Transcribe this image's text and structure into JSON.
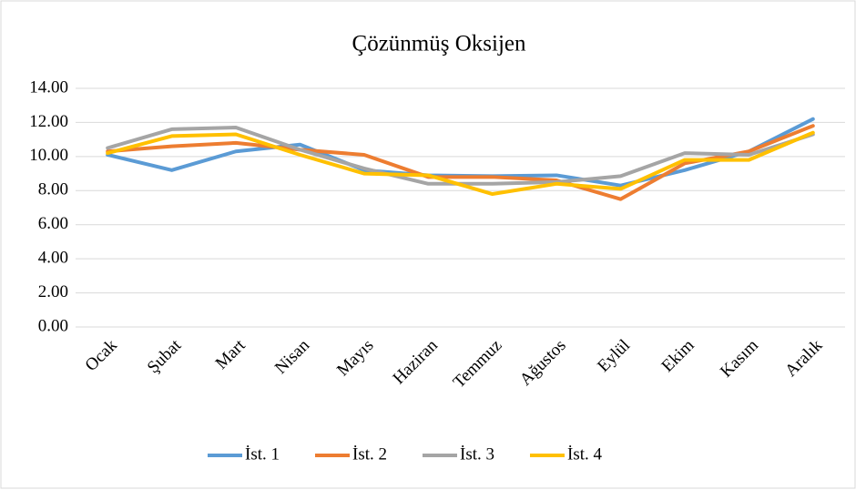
{
  "chart_data": {
    "type": "line",
    "title": "Çözünmüş Oksijen",
    "categories": [
      "Ocak",
      "Şubat",
      "Mart",
      "Nisan",
      "Mayıs",
      "Haziran",
      "Temmuz",
      "Ağustos",
      "Eylül",
      "Ekim",
      "Kasım",
      "Aralık"
    ],
    "series": [
      {
        "name": "İst. 1",
        "color": "#5b9bd5",
        "values": [
          10.1,
          9.2,
          10.3,
          10.7,
          9.2,
          8.9,
          8.85,
          8.9,
          8.3,
          9.2,
          10.3,
          12.2
        ]
      },
      {
        "name": "İst. 2",
        "color": "#ed7d31",
        "values": [
          10.3,
          10.6,
          10.8,
          10.4,
          10.1,
          8.8,
          8.8,
          8.6,
          7.5,
          9.6,
          10.3,
          11.8
        ]
      },
      {
        "name": "İst. 3",
        "color": "#a5a5a5",
        "values": [
          10.5,
          11.6,
          11.7,
          10.4,
          9.3,
          8.4,
          8.4,
          8.5,
          8.85,
          10.2,
          10.1,
          11.3
        ]
      },
      {
        "name": "İst. 4",
        "color": "#ffc000",
        "values": [
          10.2,
          11.2,
          11.3,
          10.1,
          9.0,
          8.9,
          7.8,
          8.4,
          8.1,
          9.8,
          9.8,
          11.4
        ]
      }
    ],
    "ylim": [
      0,
      14
    ],
    "yticks": [
      {
        "value": 0,
        "label": "0.00"
      },
      {
        "value": 2,
        "label": "2.00"
      },
      {
        "value": 4,
        "label": "4.00"
      },
      {
        "value": 6,
        "label": "6.00"
      },
      {
        "value": 8,
        "label": "8.00"
      },
      {
        "value": 10,
        "label": "10.00"
      },
      {
        "value": 12,
        "label": "12.00"
      },
      {
        "value": 14,
        "label": "14.00"
      }
    ],
    "grid": true,
    "legend": "bottom"
  }
}
